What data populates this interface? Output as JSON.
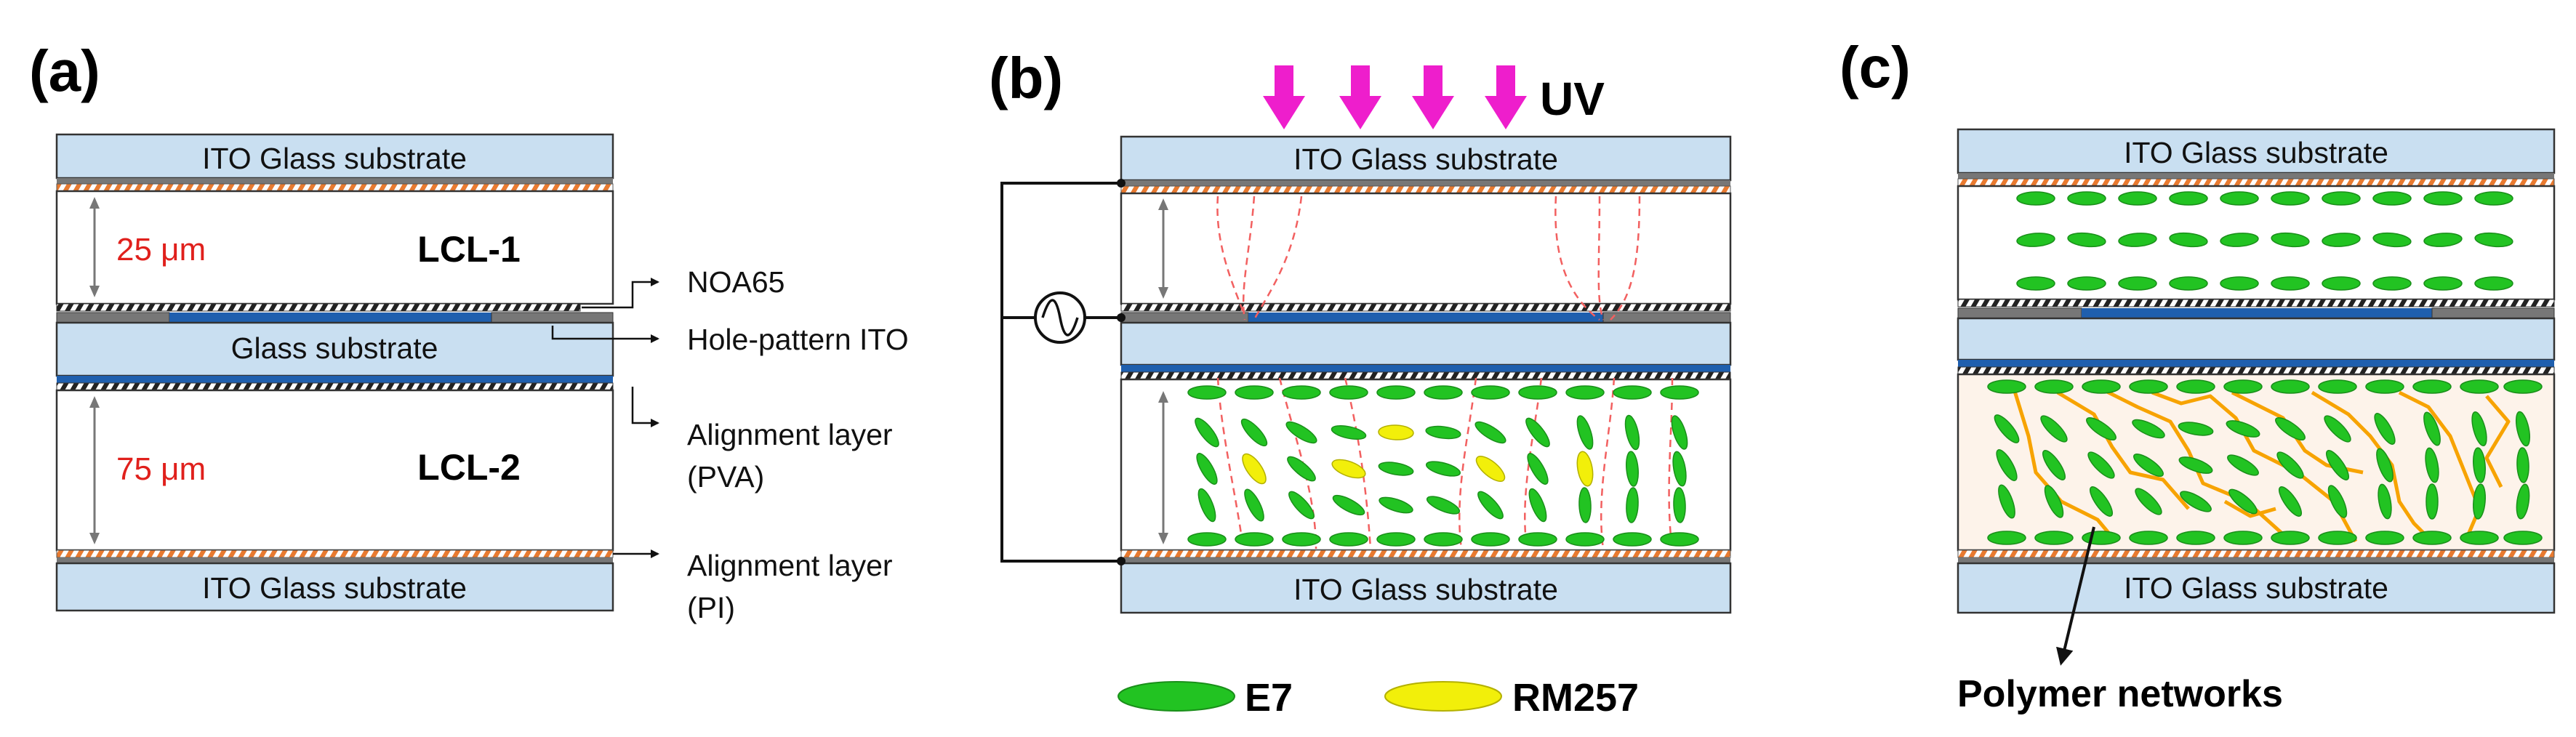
{
  "panels": {
    "a": {
      "label": "(a)",
      "top_substrate": "ITO Glass substrate",
      "middle_substrate": "Glass substrate",
      "bottom_substrate": "ITO Glass substrate",
      "gap1": "25 μm",
      "gap2": "75 μm",
      "lcl1": "LCL-1",
      "lcl2": "LCL-2",
      "annotations": [
        "NOA65",
        "Hole-pattern ITO",
        "Alignment layer",
        "(PVA)",
        "Alignment layer",
        "(PI)"
      ]
    },
    "b": {
      "label": "(b)",
      "uv": "UV",
      "top_substrate": "ITO Glass substrate",
      "bottom_substrate": "ITO Glass substrate"
    },
    "c": {
      "label": "(c)",
      "top_substrate": "ITO Glass substrate",
      "bottom_substrate": "ITO Glass substrate",
      "polymer": "Polymer networks"
    }
  },
  "legend": {
    "e7": "E7",
    "rm257": "RM257"
  },
  "colors": {
    "substrate": "#c9dff1",
    "ito_strip": "#1f5fae",
    "lc_molecule": "#22c322",
    "rm_molecule": "#f2ef0a",
    "uv_arrow": "#ee1ecc",
    "polymer": "#f7a300",
    "field_line": "#f26060",
    "dimension": "#e0201c"
  }
}
